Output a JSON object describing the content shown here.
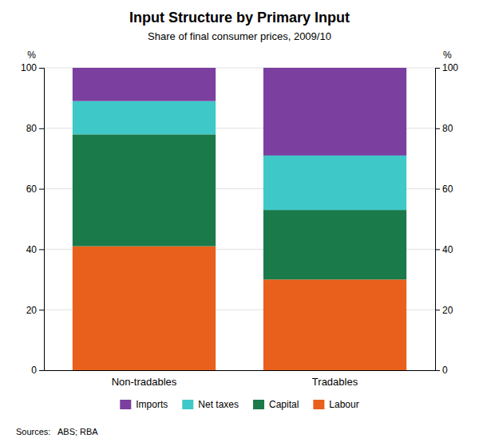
{
  "chart_data": {
    "type": "bar",
    "stacked": true,
    "title": "Input Structure by Primary Input",
    "subtitle": "Share of final consumer prices, 2009/10",
    "categories": [
      "Non-tradables",
      "Tradables"
    ],
    "series": [
      {
        "name": "Labour",
        "color": "#E8601C",
        "values": [
          41,
          30
        ]
      },
      {
        "name": "Capital",
        "color": "#1A7A4A",
        "values": [
          37,
          23
        ]
      },
      {
        "name": "Net taxes",
        "color": "#3EC8C8",
        "values": [
          11,
          18
        ]
      },
      {
        "name": "Imports",
        "color": "#7B3FA0",
        "values": [
          11,
          29
        ]
      }
    ],
    "ylim": [
      0,
      100
    ],
    "yticks": [
      0,
      20,
      40,
      60,
      80,
      100
    ],
    "y2lim": [
      0,
      100
    ],
    "y2ticks": [
      0,
      20,
      40,
      60,
      80,
      100
    ],
    "ylabel": "%",
    "y2label": "%",
    "grid": true,
    "legend": "bottom",
    "source": "Sources:   ABS; RBA"
  }
}
